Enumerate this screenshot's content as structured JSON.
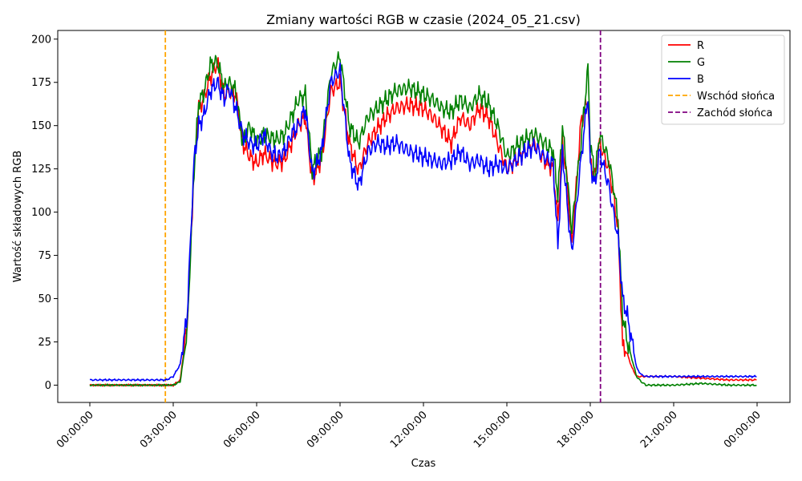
{
  "chart_data": {
    "type": "line",
    "title": "Zmiany wartości RGB w czasie (2024_05_21.csv)",
    "xlabel": "Czas",
    "ylabel": "Wartość składowych RGB",
    "xlim": [
      "2024-05-21 00:00",
      "2024-05-22 00:00"
    ],
    "ylim": [
      -10,
      205
    ],
    "x_ticks": [
      "00:00:00",
      "03:00:00",
      "06:00:00",
      "09:00:00",
      "12:00:00",
      "15:00:00",
      "18:00:00",
      "21:00:00",
      "00:00:00"
    ],
    "y_ticks": [
      0,
      25,
      50,
      75,
      100,
      125,
      150,
      175,
      200
    ],
    "grid": false,
    "legend_position": "top-right",
    "series": [
      {
        "name": "R",
        "color": "#ff0000",
        "x": [
          "00:00",
          "02:45",
          "03:00",
          "03:15",
          "03:30",
          "03:45",
          "03:55",
          "04:05",
          "04:20",
          "04:35",
          "04:50",
          "05:00",
          "05:15",
          "05:30",
          "05:45",
          "06:00",
          "06:15",
          "06:30",
          "06:45",
          "07:00",
          "07:15",
          "07:30",
          "07:45",
          "08:00",
          "08:10",
          "08:20",
          "08:40",
          "09:00",
          "09:20",
          "09:40",
          "10:00",
          "10:20",
          "10:40",
          "11:00",
          "11:30",
          "12:00",
          "12:20",
          "12:40",
          "13:00",
          "13:20",
          "13:40",
          "14:00",
          "14:20",
          "14:40",
          "15:00",
          "15:20",
          "15:40",
          "16:00",
          "16:20",
          "16:40",
          "16:50",
          "17:00",
          "17:10",
          "17:20",
          "17:40",
          "17:55",
          "18:00",
          "18:10",
          "18:20",
          "18:40",
          "18:50",
          "19:00",
          "19:10",
          "19:20",
          "19:30",
          "19:40",
          "19:50",
          "20:00",
          "20:20",
          "21:00",
          "22:00",
          "23:00",
          "23:59"
        ],
        "y": [
          0,
          0,
          0,
          3,
          35,
          125,
          160,
          165,
          178,
          186,
          168,
          170,
          168,
          140,
          132,
          128,
          134,
          130,
          128,
          130,
          140,
          150,
          155,
          118,
          125,
          130,
          170,
          175,
          140,
          124,
          140,
          148,
          155,
          160,
          162,
          160,
          155,
          148,
          140,
          155,
          150,
          160,
          155,
          140,
          125,
          130,
          135,
          140,
          130,
          125,
          95,
          140,
          118,
          80,
          152,
          165,
          130,
          120,
          140,
          125,
          110,
          90,
          22,
          18,
          10,
          5,
          5,
          5,
          5,
          5,
          4,
          3,
          3
        ]
      },
      {
        "name": "G",
        "color": "#008000",
        "x": [
          "00:00",
          "02:45",
          "03:00",
          "03:15",
          "03:30",
          "03:45",
          "03:55",
          "04:05",
          "04:20",
          "04:35",
          "04:50",
          "05:00",
          "05:15",
          "05:30",
          "05:45",
          "06:00",
          "06:15",
          "06:30",
          "06:45",
          "07:00",
          "07:15",
          "07:30",
          "07:45",
          "08:00",
          "08:10",
          "08:20",
          "08:40",
          "09:00",
          "09:20",
          "09:40",
          "10:00",
          "10:20",
          "10:40",
          "11:00",
          "11:30",
          "12:00",
          "12:20",
          "12:40",
          "13:00",
          "13:20",
          "13:40",
          "14:00",
          "14:20",
          "14:40",
          "15:00",
          "15:20",
          "15:40",
          "16:00",
          "16:20",
          "16:40",
          "16:50",
          "17:00",
          "17:10",
          "17:20",
          "17:40",
          "17:55",
          "18:00",
          "18:10",
          "18:20",
          "18:40",
          "18:50",
          "19:00",
          "19:10",
          "19:20",
          "19:30",
          "19:40",
          "19:50",
          "20:00",
          "20:20",
          "21:00",
          "22:00",
          "23:00",
          "23:59"
        ],
        "y": [
          0,
          0,
          0,
          2,
          30,
          125,
          164,
          168,
          185,
          187,
          172,
          175,
          170,
          140,
          150,
          140,
          145,
          143,
          142,
          145,
          155,
          165,
          168,
          125,
          130,
          135,
          180,
          190,
          150,
          140,
          155,
          160,
          165,
          170,
          172,
          168,
          165,
          160,
          158,
          165,
          160,
          168,
          163,
          150,
          132,
          138,
          142,
          145,
          140,
          135,
          110,
          150,
          120,
          90,
          140,
          183,
          140,
          120,
          145,
          130,
          115,
          95,
          40,
          25,
          15,
          5,
          2,
          0,
          0,
          0,
          1,
          0,
          0
        ]
      },
      {
        "name": "B",
        "color": "#0000ff",
        "x": [
          "00:00",
          "02:45",
          "03:00",
          "03:15",
          "03:30",
          "03:45",
          "03:55",
          "04:05",
          "04:20",
          "04:35",
          "04:50",
          "05:00",
          "05:15",
          "05:30",
          "05:45",
          "06:00",
          "06:15",
          "06:30",
          "06:45",
          "07:00",
          "07:15",
          "07:30",
          "07:45",
          "08:00",
          "08:10",
          "08:20",
          "08:40",
          "09:00",
          "09:20",
          "09:40",
          "10:00",
          "10:20",
          "10:40",
          "11:00",
          "11:30",
          "12:00",
          "12:20",
          "12:40",
          "13:00",
          "13:20",
          "13:40",
          "14:00",
          "14:20",
          "14:40",
          "15:00",
          "15:20",
          "15:40",
          "16:00",
          "16:20",
          "16:40",
          "16:50",
          "17:00",
          "17:10",
          "17:20",
          "17:40",
          "17:55",
          "18:00",
          "18:10",
          "18:20",
          "18:40",
          "18:50",
          "19:00",
          "19:10",
          "19:20",
          "19:30",
          "19:40",
          "19:50",
          "20:00",
          "20:20",
          "21:00",
          "22:00",
          "23:00",
          "23:59"
        ],
        "y": [
          3,
          3,
          5,
          12,
          40,
          130,
          150,
          155,
          170,
          175,
          165,
          172,
          160,
          145,
          140,
          138,
          145,
          135,
          132,
          135,
          145,
          150,
          160,
          122,
          128,
          135,
          175,
          182,
          130,
          115,
          135,
          140,
          138,
          140,
          135,
          132,
          130,
          128,
          130,
          135,
          128,
          130,
          125,
          128,
          125,
          130,
          135,
          138,
          132,
          128,
          80,
          135,
          105,
          76,
          130,
          168,
          128,
          115,
          135,
          115,
          100,
          85,
          50,
          40,
          25,
          10,
          6,
          5,
          5,
          5,
          5,
          5,
          5
        ]
      }
    ],
    "vlines": [
      {
        "name": "Wschód słońca",
        "x": "02:43",
        "color": "#ffa500",
        "style": "dashed"
      },
      {
        "name": "Zachód słońca",
        "x": "18:22",
        "color": "#800080",
        "style": "dashed"
      }
    ]
  }
}
